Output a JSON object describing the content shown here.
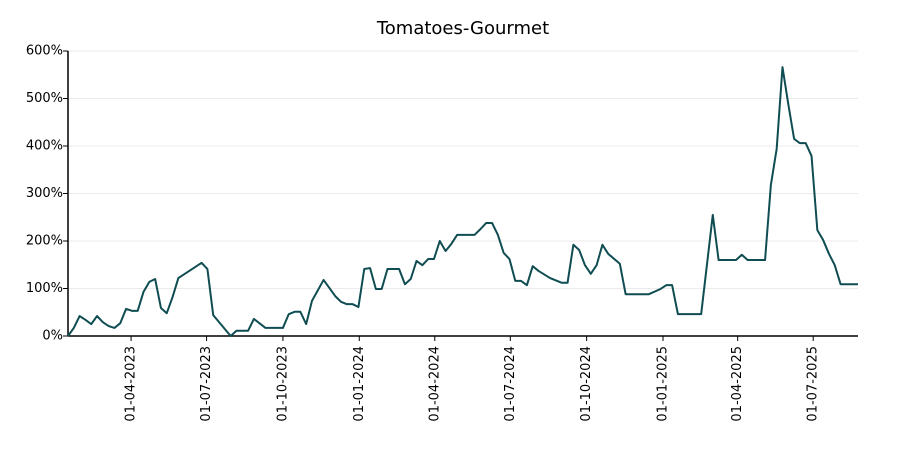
{
  "chart_data": {
    "type": "line",
    "title": "Tomatoes-Gourmet",
    "x": [
      "2023-01-15",
      "2023-01-22",
      "2023-01-29",
      "2023-02-05",
      "2023-02-12",
      "2023-02-19",
      "2023-02-26",
      "2023-03-05",
      "2023-03-12",
      "2023-03-19",
      "2023-03-26",
      "2023-04-02",
      "2023-04-09",
      "2023-04-16",
      "2023-04-23",
      "2023-04-30",
      "2023-05-07",
      "2023-05-14",
      "2023-05-21",
      "2023-05-28",
      "2023-06-25",
      "2023-07-02",
      "2023-07-09",
      "2023-07-30",
      "2023-08-06",
      "2023-08-20",
      "2023-08-27",
      "2023-09-10",
      "2023-10-01",
      "2023-10-08",
      "2023-10-15",
      "2023-10-22",
      "2023-10-29",
      "2023-11-05",
      "2023-11-19",
      "2023-12-03",
      "2023-12-10",
      "2023-12-17",
      "2023-12-24",
      "2023-12-31",
      "2024-01-07",
      "2024-01-14",
      "2024-01-21",
      "2024-01-28",
      "2024-02-04",
      "2024-02-18",
      "2024-02-25",
      "2024-03-03",
      "2024-03-10",
      "2024-03-17",
      "2024-03-24",
      "2024-03-31",
      "2024-04-07",
      "2024-04-14",
      "2024-04-21",
      "2024-04-28",
      "2024-05-19",
      "2024-05-26",
      "2024-06-02",
      "2024-06-09",
      "2024-06-16",
      "2024-06-23",
      "2024-06-30",
      "2024-07-07",
      "2024-07-14",
      "2024-07-21",
      "2024-07-28",
      "2024-08-04",
      "2024-08-18",
      "2024-09-01",
      "2024-09-08",
      "2024-09-15",
      "2024-09-22",
      "2024-09-29",
      "2024-10-06",
      "2024-10-13",
      "2024-10-20",
      "2024-10-27",
      "2024-11-10",
      "2024-11-17",
      "2024-12-15",
      "2024-12-29",
      "2025-01-05",
      "2025-01-12",
      "2025-01-19",
      "2025-02-16",
      "2025-03-02",
      "2025-03-09",
      "2025-03-30",
      "2025-04-06",
      "2025-04-13",
      "2025-05-04",
      "2025-05-11",
      "2025-05-18",
      "2025-05-25",
      "2025-06-01",
      "2025-06-08",
      "2025-06-15",
      "2025-06-22",
      "2025-06-29",
      "2025-07-06",
      "2025-07-13",
      "2025-07-20",
      "2025-07-27",
      "2025-08-03",
      "2025-08-24"
    ],
    "series": [
      {
        "name": "Tomatoes-Gourmet",
        "color": "#0f4d52",
        "values": [
          0,
          17,
          42,
          34,
          25,
          42,
          29,
          21,
          17,
          27,
          57,
          53,
          53,
          93,
          114,
          120,
          59,
          48,
          82,
          122,
          154,
          141,
          44,
          0,
          11,
          11,
          36,
          17,
          17,
          46,
          51,
          51,
          25,
          74,
          118,
          84,
          72,
          67,
          67,
          61,
          141,
          143,
          99,
          99,
          141,
          141,
          109,
          120,
          158,
          149,
          162,
          162,
          200,
          179,
          194,
          213,
          213,
          225,
          238,
          238,
          213,
          175,
          162,
          116,
          116,
          107,
          147,
          137,
          122,
          112,
          112,
          192,
          181,
          149,
          131,
          149,
          192,
          173,
          152,
          88,
          88,
          99,
          107,
          107,
          46,
          46,
          255,
          160,
          160,
          171,
          160,
          160,
          318,
          394,
          566,
          488,
          415,
          406,
          406,
          379,
          223,
          202,
          173,
          149,
          109,
          109
        ]
      }
    ],
    "xlim": [
      "2023-01-15",
      "2025-08-24"
    ],
    "xticks": [
      {
        "value": "2023-04-01",
        "label": "01-04-2023"
      },
      {
        "value": "2023-07-01",
        "label": "01-07-2023"
      },
      {
        "value": "2023-10-01",
        "label": "01-10-2023"
      },
      {
        "value": "2024-01-01",
        "label": "01-01-2024"
      },
      {
        "value": "2024-04-01",
        "label": "01-04-2024"
      },
      {
        "value": "2024-07-01",
        "label": "01-07-2024"
      },
      {
        "value": "2024-10-01",
        "label": "01-10-2024"
      },
      {
        "value": "2025-01-01",
        "label": "01-01-2025"
      },
      {
        "value": "2025-04-01",
        "label": "01-04-2025"
      },
      {
        "value": "2025-07-01",
        "label": "01-07-2025"
      }
    ],
    "ylim": [
      0,
      600
    ],
    "yticks": [
      {
        "value": 0,
        "label": "0%"
      },
      {
        "value": 100,
        "label": "100%"
      },
      {
        "value": 200,
        "label": "200%"
      },
      {
        "value": 300,
        "label": "300%"
      },
      {
        "value": 400,
        "label": "400%"
      },
      {
        "value": 500,
        "label": "500%"
      },
      {
        "value": 600,
        "label": "600%"
      }
    ],
    "grid": true
  }
}
